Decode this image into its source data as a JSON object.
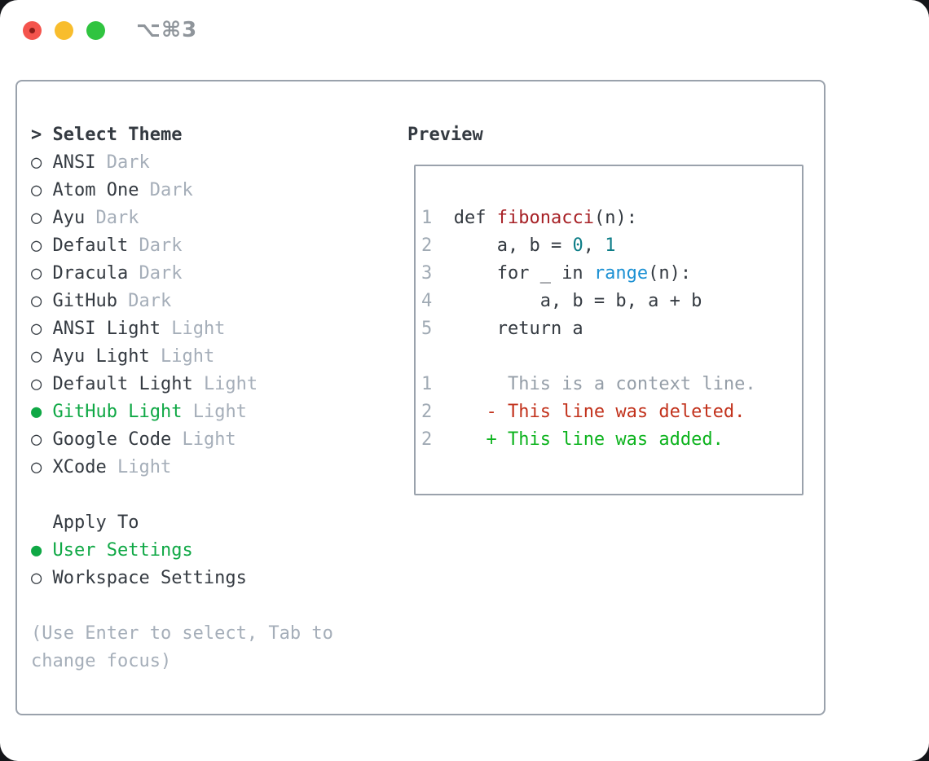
{
  "window": {
    "title": "⌥⌘3",
    "traffic_lights": [
      "close",
      "minimize",
      "maximize"
    ]
  },
  "icons": {
    "selected_bullet": "●",
    "unselected_bullet": "○"
  },
  "theme_selector": {
    "header": {
      "prefix": ">",
      "label": "Select Theme"
    },
    "items": [
      {
        "name": "ANSI",
        "variant": "Dark",
        "selected": false
      },
      {
        "name": "Atom One",
        "variant": "Dark",
        "selected": false
      },
      {
        "name": "Ayu",
        "variant": "Dark",
        "selected": false
      },
      {
        "name": "Default",
        "variant": "Dark",
        "selected": false
      },
      {
        "name": "Dracula",
        "variant": "Dark",
        "selected": false
      },
      {
        "name": "GitHub",
        "variant": "Dark",
        "selected": false
      },
      {
        "name": "ANSI Light",
        "variant": "Light",
        "selected": false
      },
      {
        "name": "Ayu Light",
        "variant": "Light",
        "selected": false
      },
      {
        "name": "Default Light",
        "variant": "Light",
        "selected": false
      },
      {
        "name": "GitHub Light",
        "variant": "Light",
        "selected": true
      },
      {
        "name": "Google Code",
        "variant": "Light",
        "selected": false
      },
      {
        "name": "XCode",
        "variant": "Light",
        "selected": false
      }
    ],
    "apply_to": {
      "label": "Apply To",
      "options": [
        {
          "name": "User Settings",
          "selected": true
        },
        {
          "name": "Workspace Settings",
          "selected": false
        }
      ]
    },
    "hint_lines": [
      "(Use Enter to select, Tab to",
      "change focus)"
    ]
  },
  "preview": {
    "label": "Preview",
    "lines": [
      {
        "kind": "code",
        "tokens": [
          [
            "1",
            "ln"
          ],
          [
            "  def ",
            "plain"
          ],
          [
            "fibonacci",
            "func"
          ],
          [
            "(n):",
            "plain"
          ]
        ]
      },
      {
        "kind": "code",
        "tokens": [
          [
            "2",
            "ln"
          ],
          [
            "      a, b = ",
            "plain"
          ],
          [
            "0",
            "num"
          ],
          [
            ", ",
            "plain"
          ],
          [
            "1",
            "num"
          ]
        ]
      },
      {
        "kind": "code",
        "tokens": [
          [
            "3",
            "ln"
          ],
          [
            "      for _ in ",
            "plain"
          ],
          [
            "range",
            "call"
          ],
          [
            "(n):",
            "plain"
          ]
        ]
      },
      {
        "kind": "code",
        "tokens": [
          [
            "4",
            "ln"
          ],
          [
            "          a, b = b, a + b",
            "plain"
          ]
        ]
      },
      {
        "kind": "code",
        "tokens": [
          [
            "5",
            "ln"
          ],
          [
            "      return a",
            "plain"
          ]
        ]
      },
      {
        "kind": "blank",
        "tokens": []
      },
      {
        "kind": "context",
        "tokens": [
          [
            "1",
            "ln"
          ],
          [
            "       This is a context line.",
            "ctx"
          ]
        ]
      },
      {
        "kind": "deleted",
        "tokens": [
          [
            "2",
            "ln"
          ],
          [
            "     ",
            "plain"
          ],
          [
            "- This line was deleted.",
            "del"
          ]
        ]
      },
      {
        "kind": "added",
        "tokens": [
          [
            "2",
            "ln"
          ],
          [
            "     ",
            "plain"
          ],
          [
            "+ This line was added.",
            "add"
          ]
        ]
      }
    ]
  },
  "colors": {
    "text-dark": "#343a41",
    "text-gray": "#a5aeb9",
    "border": "#9aa2ac",
    "green": "#0fa845",
    "diff-add": "#0db31e",
    "diff-del": "#c2321c",
    "func-red": "#a72126",
    "num-teal": "#0d7d87",
    "call-blue": "#1b90d3",
    "line-num": "#a0aab4",
    "context": "#959ea8",
    "title-gray": "#8f959b",
    "light-red": "#f4544d",
    "light-red-dot": "#8c1d18",
    "light-yellow": "#f8bd2d",
    "light-green": "#30c440"
  }
}
